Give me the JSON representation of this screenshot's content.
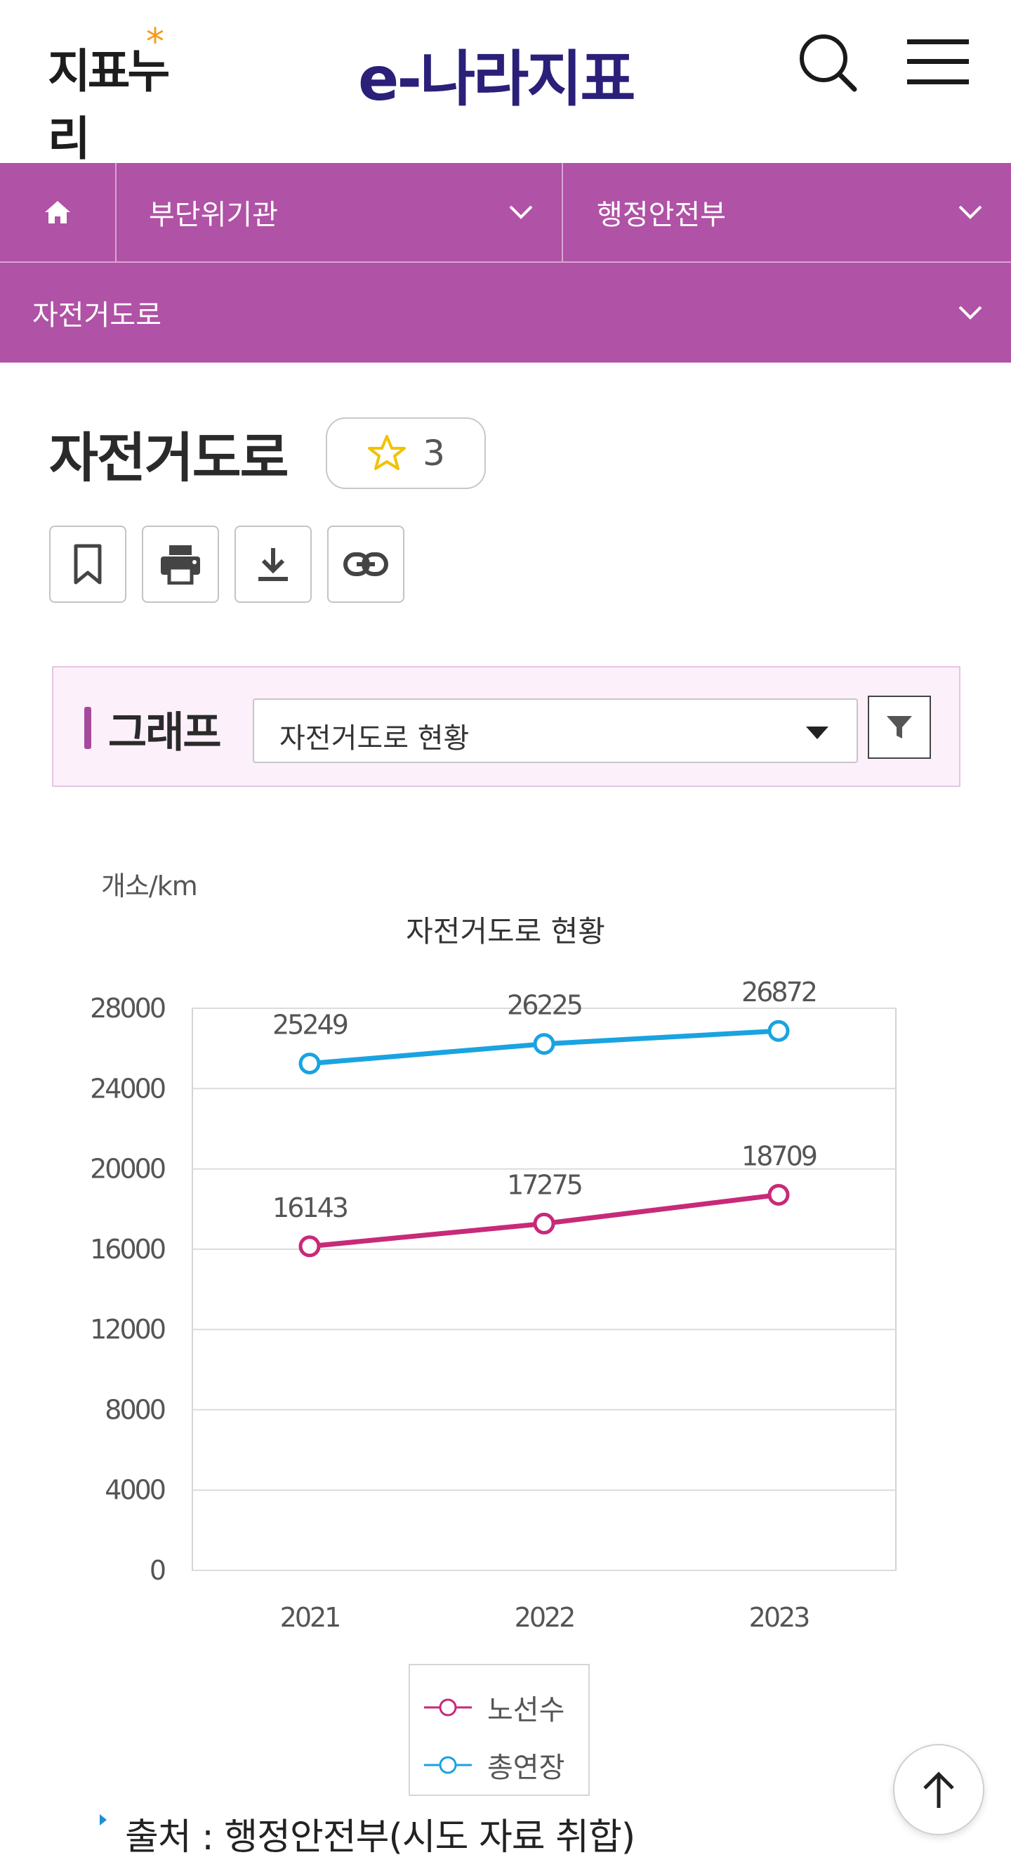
{
  "header": {
    "left_logo": "지표누리",
    "center_logo": "e-나라지표",
    "search_icon": "search-icon",
    "menu_icon": "hamburger-menu-icon"
  },
  "nav": {
    "home_icon": "home-icon",
    "dropdown1": "부단위기관",
    "dropdown2": "행정안전부",
    "dropdown3": "자전거도로"
  },
  "page": {
    "title": "자전거도로",
    "favorite_count": "3",
    "tools": [
      "bookmark-icon",
      "print-icon",
      "download-icon",
      "link-icon"
    ]
  },
  "graph": {
    "label": "그래프",
    "selected": "자전거도로 현황",
    "filter_icon": "filter-icon"
  },
  "chart_data": {
    "type": "line",
    "title": "자전거도로 현황",
    "unit": "개소/km",
    "categories": [
      "2021",
      "2022",
      "2023"
    ],
    "series": [
      {
        "name": "노선수",
        "values": [
          16143,
          17275,
          18709
        ],
        "color": "#c72a78"
      },
      {
        "name": "총연장",
        "values": [
          25249,
          26225,
          26872
        ],
        "color": "#1aa3e0"
      }
    ],
    "ylim": [
      0,
      28000
    ],
    "yticks": [
      0,
      4000,
      8000,
      12000,
      16000,
      20000,
      24000,
      28000
    ],
    "grid": true,
    "legend": "bottom"
  },
  "source": "출처 : 행정안전부(시도 자료 취합)",
  "scroll_top_icon": "arrow-up-icon"
}
